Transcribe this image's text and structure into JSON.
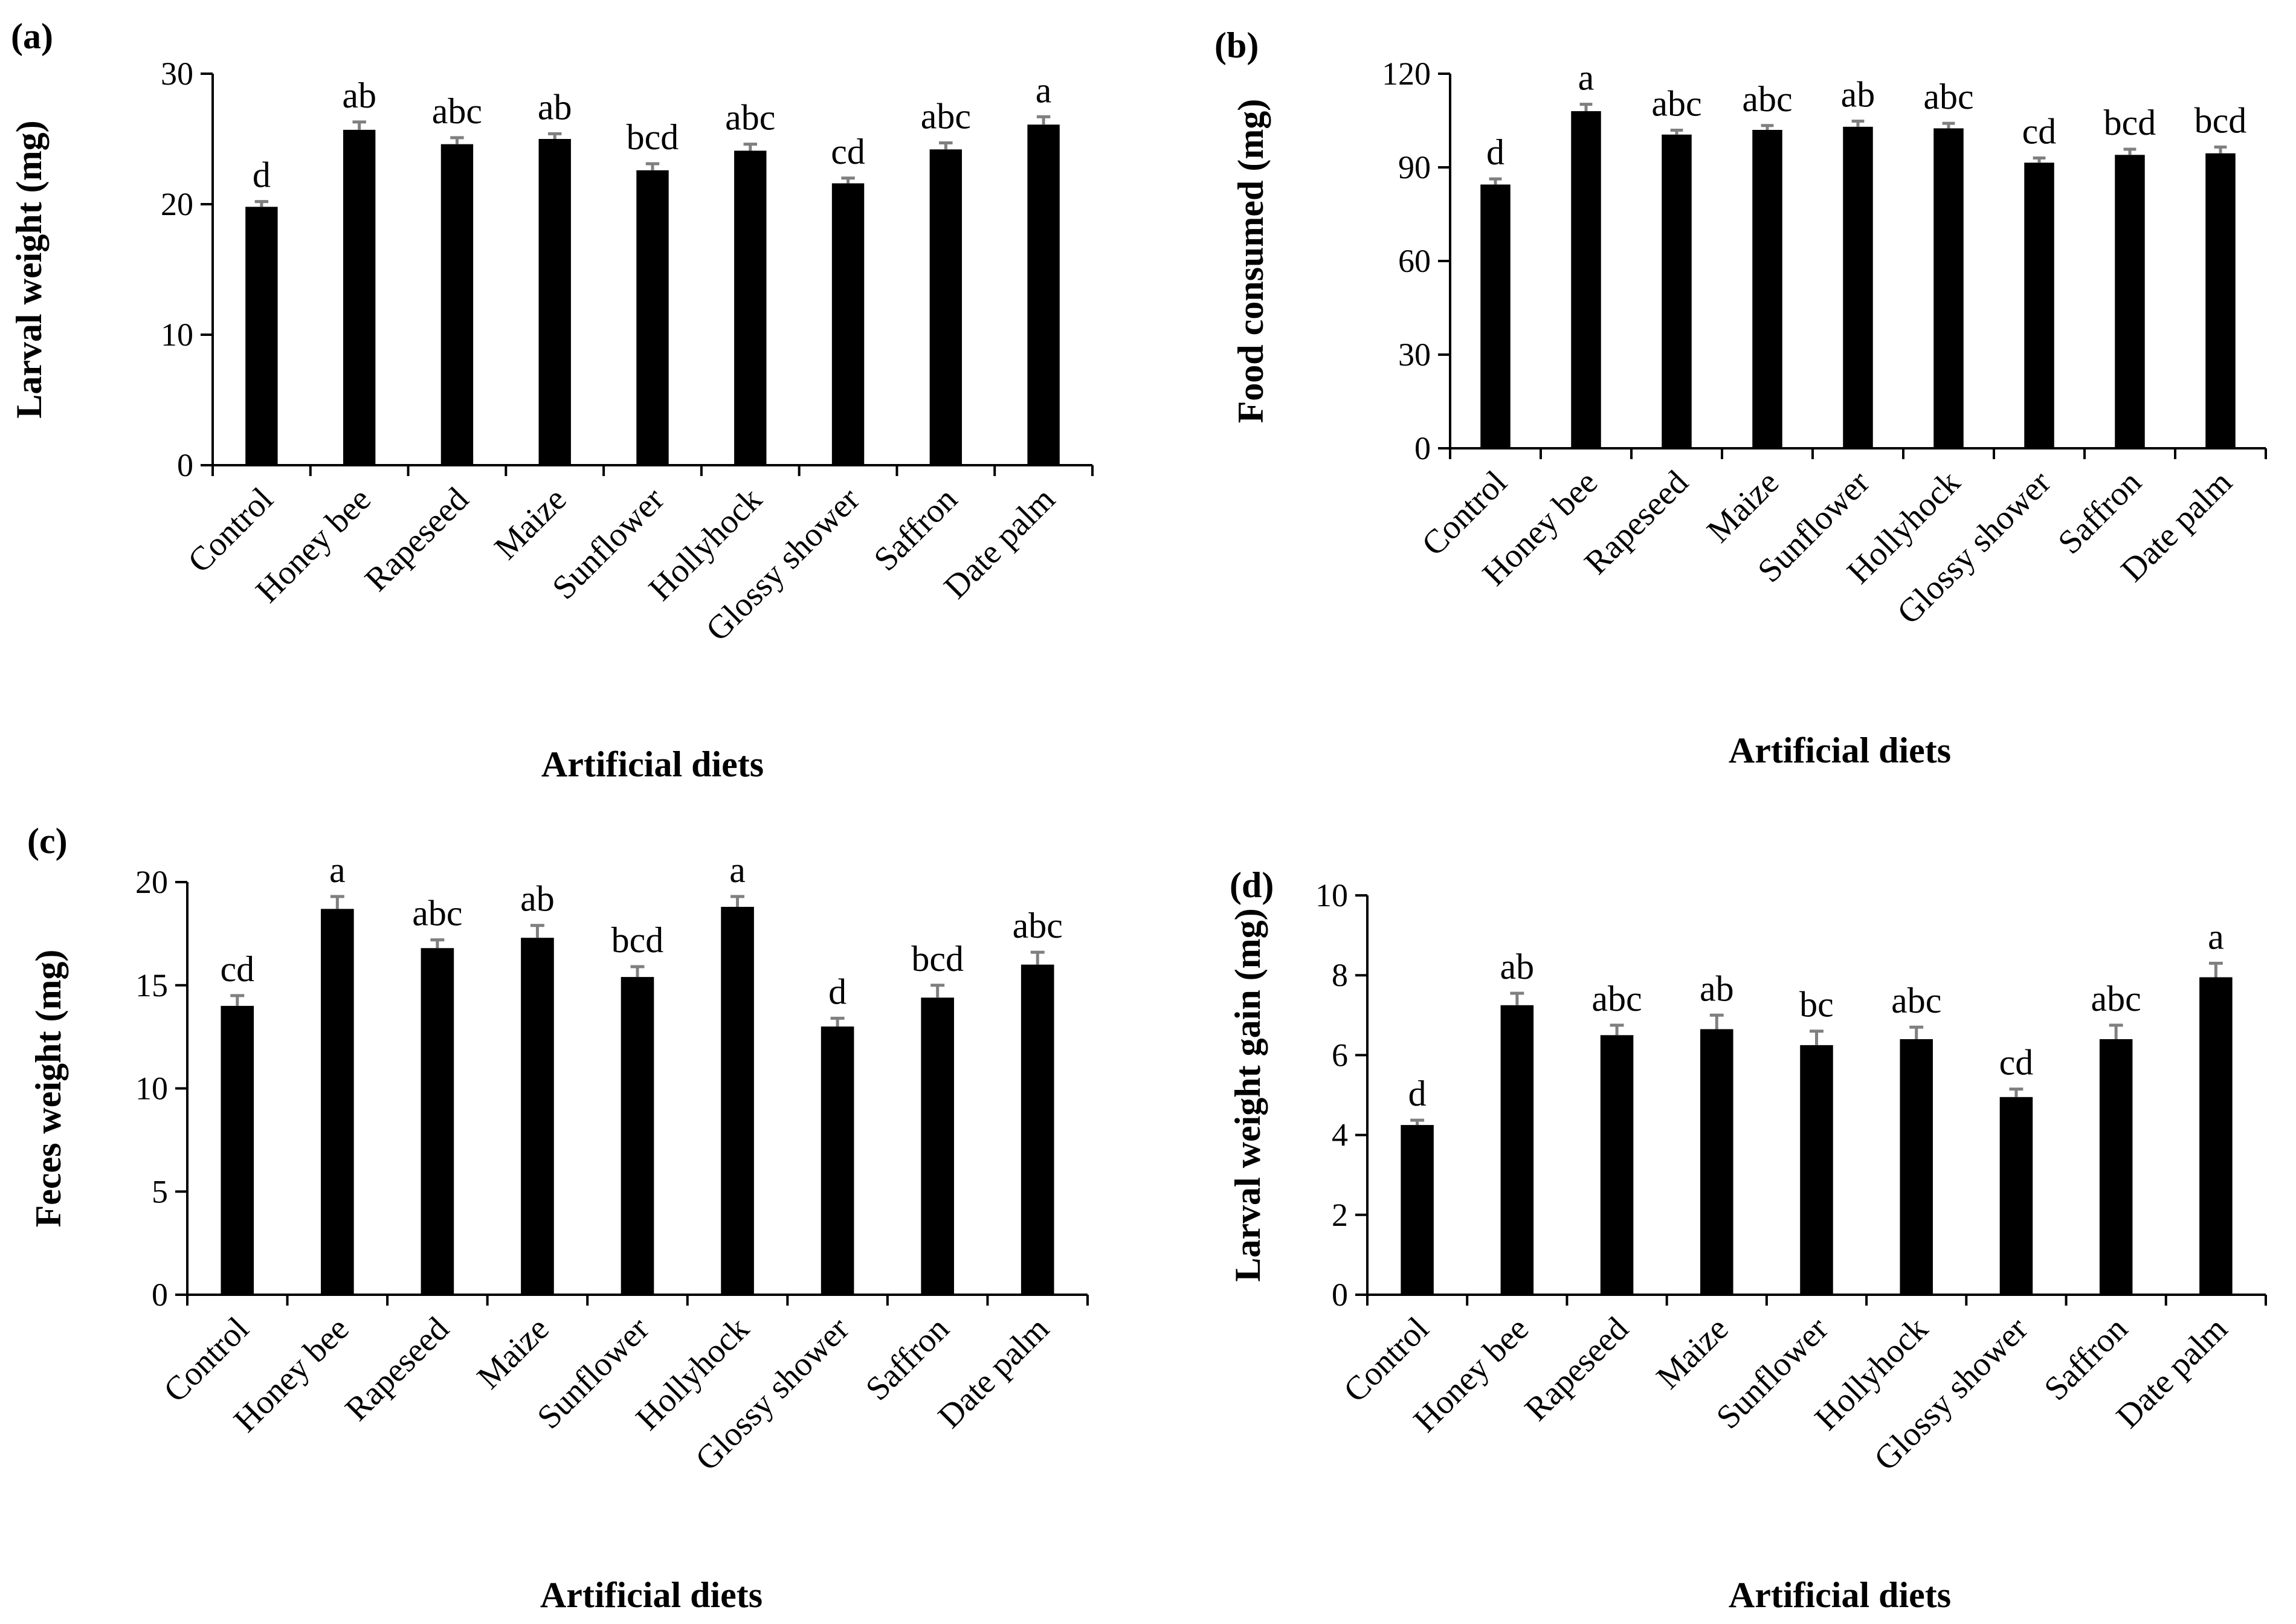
{
  "colors": {
    "bar": "#000000",
    "error_bar": "#7f7f7f",
    "axis": "#000000",
    "background": "#ffffff"
  },
  "chart_data": [
    {
      "type": "bar",
      "panel_label": "(a)",
      "title": "",
      "xlabel": "Artificial diets",
      "ylabel": "Larval weight (mg)",
      "ylim": [
        0,
        30
      ],
      "yticks": [
        0,
        10,
        20,
        30
      ],
      "grid": false,
      "categories": [
        "Control",
        "Honey bee",
        "Rapeseed",
        "Maize",
        "Sunflower",
        "Hollyhock",
        "Glossy shower",
        "Saffron",
        "Date palm"
      ],
      "values": [
        19.8,
        25.7,
        24.6,
        25.0,
        22.6,
        24.1,
        21.6,
        24.2,
        26.1
      ],
      "errors": [
        0.4,
        0.6,
        0.5,
        0.4,
        0.5,
        0.5,
        0.4,
        0.5,
        0.6
      ],
      "significance": [
        "d",
        "ab",
        "abc",
        "ab",
        "bcd",
        "abc",
        "cd",
        "abc",
        "a"
      ]
    },
    {
      "type": "bar",
      "panel_label": "(b)",
      "title": "",
      "xlabel": "Artificial diets",
      "ylabel": "Food consumed (mg)",
      "ylim": [
        0,
        120
      ],
      "yticks": [
        0,
        30,
        60,
        90,
        120
      ],
      "grid": false,
      "categories": [
        "Control",
        "Honey bee",
        "Rapeseed",
        "Maize",
        "Sunflower",
        "Hollyhock",
        "Glossy shower",
        "Saffron",
        "Date palm"
      ],
      "values": [
        84.5,
        108.0,
        100.5,
        102.0,
        103.0,
        102.5,
        91.5,
        94.0,
        94.5
      ],
      "errors": [
        1.8,
        2.2,
        1.4,
        1.4,
        1.8,
        1.6,
        1.5,
        1.8,
        2.0
      ],
      "significance": [
        "d",
        "a",
        "abc",
        "abc",
        "ab",
        "abc",
        "cd",
        "bcd",
        "bcd"
      ]
    },
    {
      "type": "bar",
      "panel_label": "(c)",
      "title": "",
      "xlabel": "Artificial diets",
      "ylabel": "Feces weight (mg)",
      "ylim": [
        0,
        20
      ],
      "yticks": [
        0,
        5,
        10,
        15,
        20
      ],
      "grid": false,
      "categories": [
        "Control",
        "Honey bee",
        "Rapeseed",
        "Maize",
        "Sunflower",
        "Hollyhock",
        "Glossy shower",
        "Saffron",
        "Date palm"
      ],
      "values": [
        14.0,
        18.7,
        16.8,
        17.3,
        15.4,
        18.8,
        13.0,
        14.4,
        16.0
      ],
      "errors": [
        0.5,
        0.6,
        0.4,
        0.6,
        0.5,
        0.5,
        0.4,
        0.6,
        0.6
      ],
      "significance": [
        "cd",
        "a",
        "abc",
        "ab",
        "bcd",
        "a",
        "d",
        "bcd",
        "abc"
      ]
    },
    {
      "type": "bar",
      "panel_label": "(d)",
      "title": "",
      "xlabel": "Artificial diets",
      "ylabel": "Larval weight gain (mg)",
      "ylim": [
        0,
        10
      ],
      "yticks": [
        0,
        2,
        4,
        6,
        8,
        10
      ],
      "grid": false,
      "categories": [
        "Control",
        "Honey bee",
        "Rapeseed",
        "Maize",
        "Sunflower",
        "Hollyhock",
        "Glossy shower",
        "Saffron",
        "Date palm"
      ],
      "values": [
        4.25,
        7.25,
        6.5,
        6.65,
        6.25,
        6.4,
        4.95,
        6.4,
        7.95
      ],
      "errors": [
        0.12,
        0.3,
        0.25,
        0.35,
        0.35,
        0.3,
        0.2,
        0.35,
        0.35
      ],
      "significance": [
        "d",
        "ab",
        "abc",
        "ab",
        "bc",
        "abc",
        "cd",
        "abc",
        "a"
      ]
    }
  ]
}
